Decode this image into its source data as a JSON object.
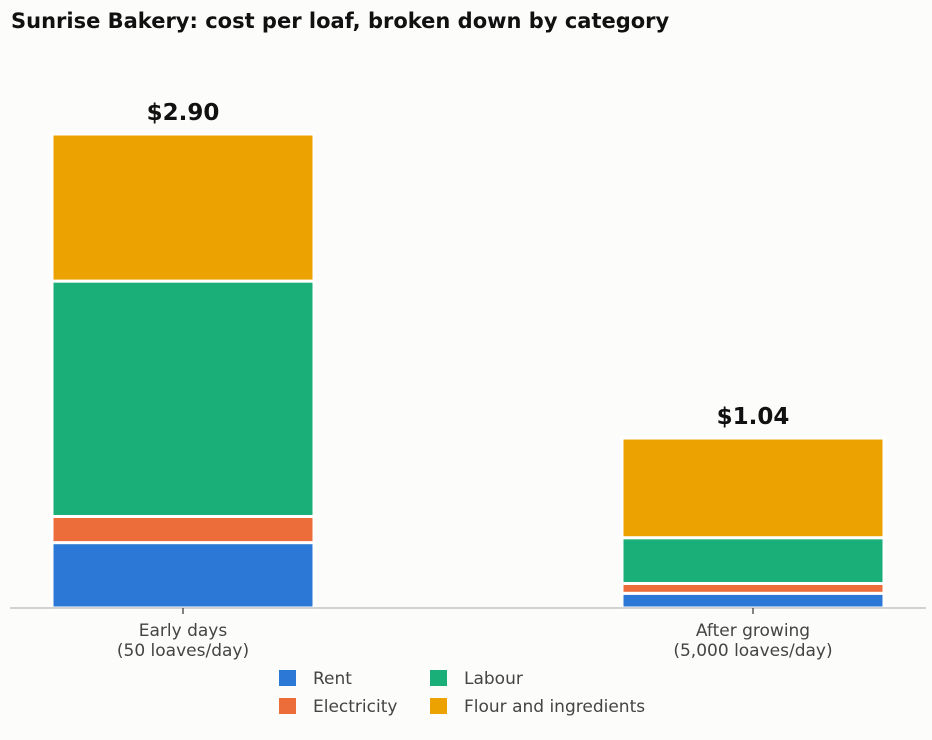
{
  "chart_data": {
    "type": "bar",
    "stacked": true,
    "title": "Sunrise Bakery: cost per loaf, broken down by category",
    "xlabel": "",
    "ylabel": "",
    "categories": [
      [
        "Early days",
        "(50 loaves/day)"
      ],
      [
        "After growing",
        "(5,000 loaves/day)"
      ]
    ],
    "totals_labels": [
      "$2.90",
      "$1.04"
    ],
    "series": [
      {
        "name": "Rent",
        "color": "#2b78d6",
        "values": [
          0.4,
          0.09
        ]
      },
      {
        "name": "Electricity",
        "color": "#ec6c3a",
        "values": [
          0.16,
          0.06
        ]
      },
      {
        "name": "Labour",
        "color": "#1aae79",
        "values": [
          1.44,
          0.28
        ]
      },
      {
        "name": "Flour and ingredients",
        "color": "#eca200",
        "values": [
          0.9,
          0.61
        ]
      }
    ],
    "ylim": [
      0,
      3.2
    ],
    "grid": false,
    "legend": "bottom-center"
  }
}
